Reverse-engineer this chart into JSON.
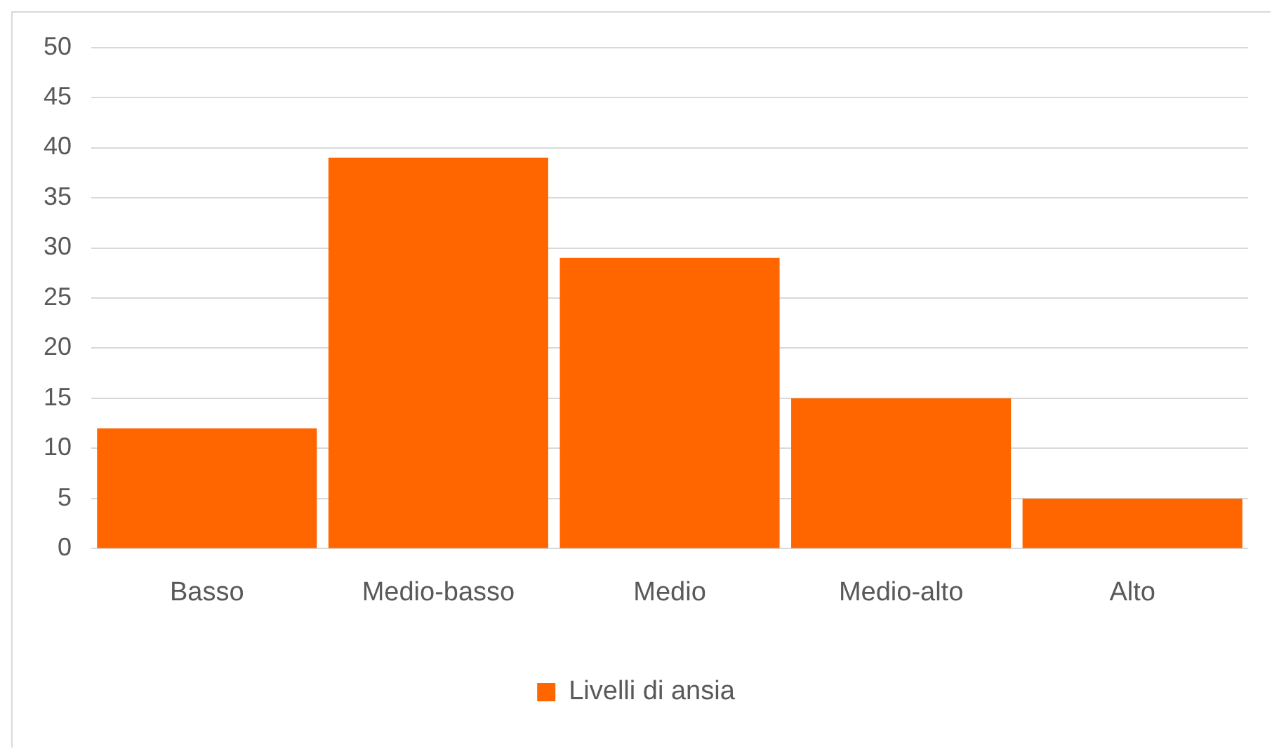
{
  "chart_data": {
    "type": "bar",
    "categories": [
      "Basso",
      "Medio-basso",
      "Medio",
      "Medio-alto",
      "Alto"
    ],
    "series": [
      {
        "name": "Livelli di ansia",
        "color": "#ff6600",
        "values": [
          12,
          39,
          29,
          15,
          5
        ]
      }
    ],
    "ylim": [
      0,
      50
    ],
    "yticks": [
      0,
      5,
      10,
      15,
      20,
      25,
      30,
      35,
      40,
      45,
      50
    ],
    "grid": "y",
    "legend": "bottom"
  }
}
